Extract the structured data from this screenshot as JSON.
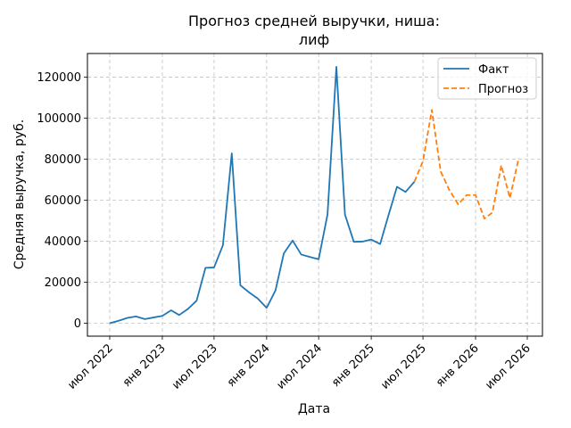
{
  "chart_data": {
    "type": "line",
    "title_line1": "Прогноз средней выручки, ниша:",
    "title_line2": "лиф",
    "xlabel": "Дата",
    "ylabel": "Средняя выручка, руб.",
    "grid": true,
    "legend_position": "top-right",
    "x_ticks": [
      "июл 2022",
      "янв 2023",
      "июл 2023",
      "янв 2024",
      "июл 2024",
      "янв 2025",
      "июл 2025",
      "янв 2026",
      "июл 2026"
    ],
    "x_tick_dates": [
      "2022-07-01",
      "2023-01-01",
      "2023-07-01",
      "2024-01-01",
      "2024-07-01",
      "2025-01-01",
      "2025-07-01",
      "2026-01-01",
      "2026-07-01"
    ],
    "y_ticks": [
      0,
      20000,
      40000,
      60000,
      80000,
      100000,
      120000
    ],
    "xlim": [
      "2022-04-14",
      "2026-08-23"
    ],
    "ylim": [
      -6300,
      131500
    ],
    "series": [
      {
        "name": "Факт",
        "color": "#1f77b4",
        "style": "solid",
        "points": [
          [
            "2022-07-01",
            0
          ],
          [
            "2022-08-01",
            1200
          ],
          [
            "2022-09-01",
            2600
          ],
          [
            "2022-10-01",
            3300
          ],
          [
            "2022-11-01",
            2000
          ],
          [
            "2022-12-01",
            2800
          ],
          [
            "2023-01-01",
            3600
          ],
          [
            "2023-02-01",
            6300
          ],
          [
            "2023-03-01",
            4000
          ],
          [
            "2023-04-01",
            7000
          ],
          [
            "2023-05-01",
            11000
          ],
          [
            "2023-06-01",
            27000
          ],
          [
            "2023-07-01",
            27200
          ],
          [
            "2023-08-01",
            38000
          ],
          [
            "2023-09-01",
            82800
          ],
          [
            "2023-10-01",
            18500
          ],
          [
            "2023-11-01",
            15000
          ],
          [
            "2023-12-01",
            12000
          ],
          [
            "2024-01-01",
            7500
          ],
          [
            "2024-02-01",
            16000
          ],
          [
            "2024-03-01",
            34000
          ],
          [
            "2024-04-01",
            40300
          ],
          [
            "2024-05-01",
            33500
          ],
          [
            "2024-06-01",
            32300
          ],
          [
            "2024-07-01",
            31200
          ],
          [
            "2024-08-01",
            53000
          ],
          [
            "2024-09-01",
            125000
          ],
          [
            "2024-10-01",
            53000
          ],
          [
            "2024-11-01",
            39700
          ],
          [
            "2024-12-01",
            39800
          ],
          [
            "2025-01-01",
            40800
          ],
          [
            "2025-02-01",
            38600
          ],
          [
            "2025-03-01",
            52000
          ],
          [
            "2025-04-01",
            66500
          ],
          [
            "2025-05-01",
            64000
          ],
          [
            "2025-06-01",
            69000
          ]
        ]
      },
      {
        "name": "Прогноз",
        "color": "#ff7f0e",
        "style": "dashed",
        "points": [
          [
            "2025-06-01",
            69000
          ],
          [
            "2025-07-01",
            79000
          ],
          [
            "2025-08-01",
            104000
          ],
          [
            "2025-09-01",
            74000
          ],
          [
            "2025-10-01",
            65000
          ],
          [
            "2025-11-01",
            58000
          ],
          [
            "2025-12-01",
            62500
          ],
          [
            "2026-01-01",
            62500
          ],
          [
            "2026-02-01",
            51000
          ],
          [
            "2026-03-01",
            54000
          ],
          [
            "2026-04-01",
            77000
          ],
          [
            "2026-05-01",
            61000
          ],
          [
            "2026-06-01",
            80500
          ]
        ]
      }
    ]
  }
}
